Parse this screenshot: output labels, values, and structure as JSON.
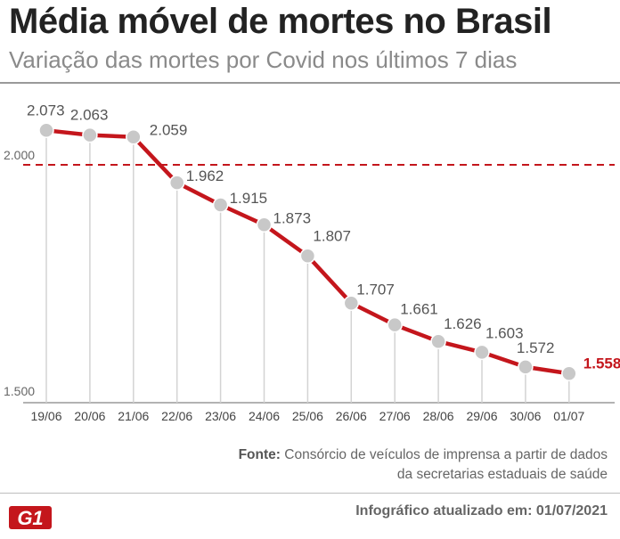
{
  "title": "Média móvel de mortes no Brasil",
  "subtitle": "Variação das mortes por Covid nos últimos 7 dias",
  "source_label": "Fonte:",
  "source_text": "Consórcio de veículos de imprensa a partir de dados da secretarias estaduais de saúde",
  "updated": "Infográfico atualizado em: 01/07/2021",
  "logo_text": "G1",
  "colors": {
    "line": "#c4161c",
    "reference": "#c4161c",
    "point": "#c8c8c8",
    "grid": "#d3d3d3",
    "logo": "#c4161c"
  },
  "chart_data": {
    "type": "line",
    "title": "Média móvel de mortes no Brasil",
    "subtitle": "Variação das mortes por Covid nos últimos 7 dias",
    "categories": [
      "19/06",
      "20/06",
      "21/06",
      "22/06",
      "23/06",
      "24/06",
      "25/06",
      "26/06",
      "27/06",
      "28/06",
      "29/06",
      "30/06",
      "01/07"
    ],
    "values": [
      2073,
      2063,
      2059,
      1962,
      1915,
      1873,
      1807,
      1707,
      1661,
      1626,
      1603,
      1572,
      1558
    ],
    "labels": [
      "2.073",
      "2.063",
      "2.059",
      "1.962",
      "1.915",
      "1.873",
      "1.807",
      "1.707",
      "1.661",
      "1.626",
      "1.603",
      "1.572",
      "1.558"
    ],
    "y_ticks": [
      1500,
      2000
    ],
    "y_tick_labels": [
      "1.500",
      "2.000"
    ],
    "ylim": [
      1500,
      2120
    ],
    "reference_line": {
      "value": 2000,
      "style": "dashed"
    },
    "highlight_last": true,
    "grid": "vertical drop lines per point",
    "legend": "none"
  }
}
